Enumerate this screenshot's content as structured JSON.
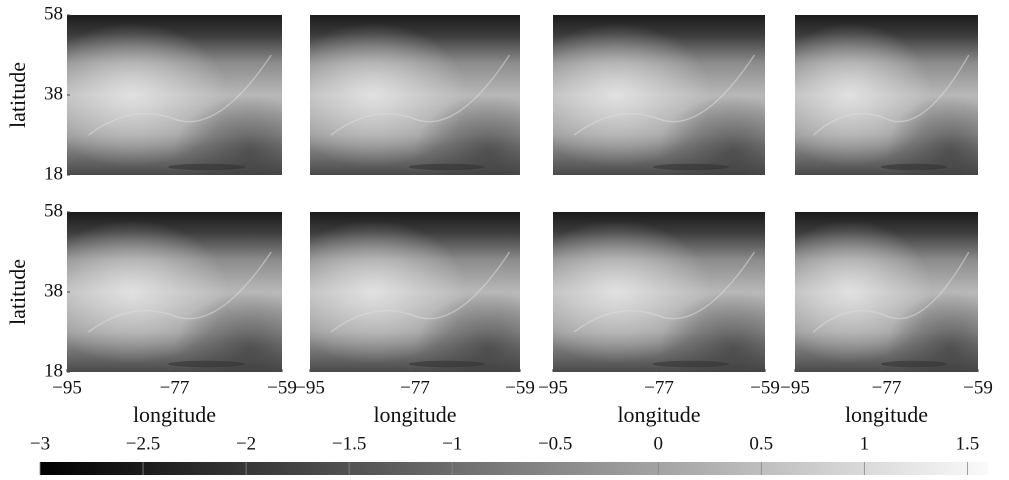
{
  "chart_data": {
    "type": "heatmap",
    "xlabel": "longitude",
    "ylabel": "latitude",
    "xlim": [
      -95,
      -59
    ],
    "ylim": [
      18,
      58
    ],
    "xticks": [
      {
        "value": -95,
        "label": "−95"
      },
      {
        "value": -77,
        "label": "−77"
      },
      {
        "value": -59,
        "label": "−59"
      }
    ],
    "yticks": [
      18,
      38,
      58
    ],
    "colorbar": {
      "clim": [
        -3,
        1.6
      ],
      "ticks": [
        {
          "value": -3,
          "label": "−3"
        },
        {
          "value": -2.5,
          "label": "−2.5"
        },
        {
          "value": -2,
          "label": "−2"
        },
        {
          "value": -1.5,
          "label": "−1.5"
        },
        {
          "value": -1,
          "label": "−1"
        },
        {
          "value": -0.5,
          "label": "−0.5"
        },
        0,
        0.5,
        1,
        1.5
      ]
    }
  }
}
